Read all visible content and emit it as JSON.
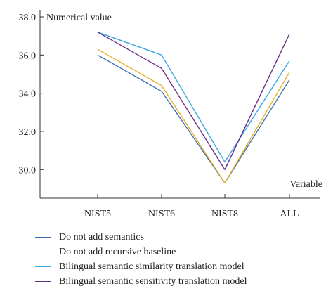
{
  "chart_data": {
    "type": "line",
    "ylabel": "Numerical value",
    "xlabel": "Variable",
    "categories": [
      "NIST5",
      "NIST6",
      "NIST8",
      "ALL"
    ],
    "ylim": [
      28.5,
      38.0
    ],
    "yticks": [
      "30.0",
      "32.0",
      "34.0",
      "36.0",
      "38.0"
    ],
    "series": [
      {
        "name": "Do not add semantics",
        "color": "#3d6fb0",
        "values": [
          36.0,
          34.1,
          29.3,
          34.7
        ]
      },
      {
        "name": "Do not add recursive baseline",
        "color": "#e8b023",
        "values": [
          36.3,
          34.4,
          29.3,
          35.1
        ]
      },
      {
        "name": "Bilingual semantic similarity translation model",
        "color": "#38a8e0",
        "values": [
          37.2,
          36.0,
          30.4,
          35.7
        ]
      },
      {
        "name": "Bilingual semantic sensitivity translation model",
        "color": "#6a2d86",
        "values": [
          37.2,
          35.3,
          30.0,
          37.1
        ]
      }
    ],
    "legend_position": "bottom-left",
    "grid": false
  }
}
